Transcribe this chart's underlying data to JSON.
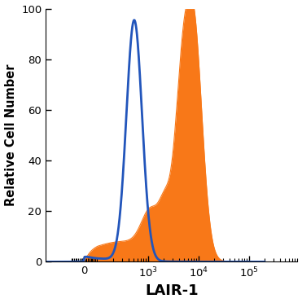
{
  "title": "",
  "xlabel": "LAIR-1",
  "ylabel": "Relative Cell Number",
  "ylim": [
    0,
    100
  ],
  "yticks": [
    0,
    20,
    40,
    60,
    80,
    100
  ],
  "blue_color": "#2255bb",
  "orange_color": "#f87818",
  "blue_linewidth": 2.0,
  "xlabel_fontsize": 13,
  "ylabel_fontsize": 10.5,
  "tick_fontsize": 9.5,
  "figsize": [
    3.71,
    3.72
  ],
  "dpi": 100,
  "linthresh": 100,
  "linscale": 0.25,
  "xlim": [
    -300,
    200000
  ],
  "blue_peak_log": 2.72,
  "blue_sigma": 0.155,
  "blue_amp": 95,
  "blue_base_log": 1.2,
  "blue_base_sigma": 0.9,
  "blue_base_amp": 2.0,
  "orange_main_log": 3.88,
  "orange_main_sigma": 0.175,
  "orange_main_amp": 98,
  "orange_shoulder1_log": 3.05,
  "orange_shoulder1_sigma": 0.18,
  "orange_shoulder1_amp": 15,
  "orange_shoulder2_log": 3.35,
  "orange_shoulder2_sigma": 0.12,
  "orange_shoulder2_amp": 18,
  "orange_shoulder3_log": 3.55,
  "orange_shoulder3_sigma": 0.1,
  "orange_shoulder3_amp": 22,
  "orange_shoulder4_log": 3.68,
  "orange_shoulder4_sigma": 0.1,
  "orange_shoulder4_amp": 28,
  "orange_base_log": 2.5,
  "orange_base_sigma": 0.7,
  "orange_base_amp": 8
}
